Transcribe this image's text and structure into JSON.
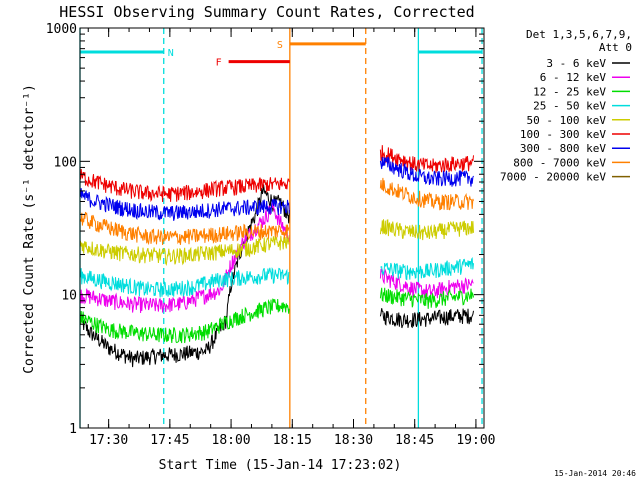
{
  "chart_data": {
    "type": "line",
    "title": "HESSI Observing Summary Count Rates, Corrected",
    "xlabel": "Start Time (15-Jan-14 17:23:02)",
    "ylabel": "Corrected Count Rate (s⁻¹ detector⁻¹)",
    "y_scale": "log",
    "ylim": [
      1,
      1000
    ],
    "xlim_minutes": [
      17.383,
      19.033
    ],
    "x_ticks": [
      {
        "value": 17.5,
        "label": "17:30"
      },
      {
        "value": 17.75,
        "label": "17:45"
      },
      {
        "value": 18.0,
        "label": "18:00"
      },
      {
        "value": 18.25,
        "label": "18:15"
      },
      {
        "value": 18.5,
        "label": "18:30"
      },
      {
        "value": 18.75,
        "label": "18:45"
      },
      {
        "value": 19.0,
        "label": "19:00"
      }
    ],
    "y_ticks": [
      {
        "value": 1,
        "label": "1"
      },
      {
        "value": 10,
        "label": "10"
      },
      {
        "value": 100,
        "label": "100"
      },
      {
        "value": 1000,
        "label": "1000"
      }
    ],
    "legend": {
      "position": "top-right",
      "header_line1": "Det 1,3,5,6,7,9,",
      "header_line2": "Att 0",
      "entries": [
        {
          "label": "3 - 6 keV",
          "color": "#000000"
        },
        {
          "label": "6 - 12 keV",
          "color": "#ee00ee"
        },
        {
          "label": "12 - 25 keV",
          "color": "#00dd00"
        },
        {
          "label": "25 - 50 keV",
          "color": "#00dddd"
        },
        {
          "label": "50 - 100 keV",
          "color": "#cccc00"
        },
        {
          "label": "100 - 300 keV",
          "color": "#ee0000"
        },
        {
          "label": "300 - 800 keV",
          "color": "#0000ee"
        },
        {
          "label": "800 - 7000 keV",
          "color": "#ff8000"
        },
        {
          "label": "7000 - 20000 keV",
          "color": "#806000"
        }
      ]
    },
    "series": [
      {
        "color": "#000000",
        "gaps": [
          [
            18.24,
            18.61
          ]
        ],
        "points": [
          [
            17.383,
            6.5
          ],
          [
            17.42,
            5.3
          ],
          [
            17.5,
            4
          ],
          [
            17.6,
            3.3
          ],
          [
            17.7,
            3.5
          ],
          [
            17.8,
            3.6
          ],
          [
            17.9,
            3.8
          ],
          [
            17.98,
            6.5
          ],
          [
            18.0,
            12
          ],
          [
            18.05,
            25
          ],
          [
            18.1,
            40
          ],
          [
            18.13,
            60
          ],
          [
            18.16,
            52
          ],
          [
            18.18,
            48
          ],
          [
            18.2,
            50
          ],
          [
            18.225,
            42
          ],
          [
            18.24,
            38
          ],
          [
            18.61,
            7
          ],
          [
            18.7,
            6.5
          ],
          [
            18.8,
            6.6
          ],
          [
            18.9,
            6.9
          ],
          [
            18.99,
            7
          ]
        ]
      },
      {
        "color": "#ee00ee",
        "gaps": [
          [
            18.24,
            18.61
          ]
        ],
        "points": [
          [
            17.383,
            10
          ],
          [
            17.45,
            9.5
          ],
          [
            17.5,
            9
          ],
          [
            17.6,
            8.5
          ],
          [
            17.7,
            8.3
          ],
          [
            17.8,
            8.6
          ],
          [
            17.9,
            10
          ],
          [
            17.96,
            11
          ],
          [
            18.0,
            17
          ],
          [
            18.05,
            25
          ],
          [
            18.1,
            32
          ],
          [
            18.14,
            38
          ],
          [
            18.17,
            46
          ],
          [
            18.2,
            35
          ],
          [
            18.225,
            30
          ],
          [
            18.24,
            28
          ],
          [
            18.61,
            14
          ],
          [
            18.65,
            13
          ],
          [
            18.75,
            11
          ],
          [
            18.82,
            10.5
          ],
          [
            18.9,
            11.5
          ],
          [
            18.99,
            12
          ]
        ]
      },
      {
        "color": "#00dd00",
        "gaps": [
          [
            18.24,
            18.61
          ]
        ],
        "points": [
          [
            17.383,
            6.8
          ],
          [
            17.45,
            6
          ],
          [
            17.5,
            5.5
          ],
          [
            17.6,
            5.2
          ],
          [
            17.7,
            5
          ],
          [
            17.8,
            5
          ],
          [
            17.9,
            5.3
          ],
          [
            18.0,
            6.5
          ],
          [
            18.05,
            7
          ],
          [
            18.1,
            7.5
          ],
          [
            18.15,
            8
          ],
          [
            18.2,
            8.3
          ],
          [
            18.225,
            8.3
          ],
          [
            18.24,
            8
          ],
          [
            18.61,
            10
          ],
          [
            18.7,
            9.5
          ],
          [
            18.8,
            9
          ],
          [
            18.9,
            9.5
          ],
          [
            18.99,
            10
          ]
        ]
      },
      {
        "color": "#00dddd",
        "gaps": [
          [
            18.24,
            18.61
          ]
        ],
        "points": [
          [
            17.383,
            14
          ],
          [
            17.45,
            13
          ],
          [
            17.55,
            12
          ],
          [
            17.65,
            11
          ],
          [
            17.75,
            11
          ],
          [
            17.85,
            11.5
          ],
          [
            17.95,
            13
          ],
          [
            18.05,
            13.5
          ],
          [
            18.15,
            14
          ],
          [
            18.225,
            14
          ],
          [
            18.24,
            13.5
          ],
          [
            18.61,
            16
          ],
          [
            18.7,
            15
          ],
          [
            18.8,
            15
          ],
          [
            18.9,
            16
          ],
          [
            18.99,
            17
          ]
        ]
      },
      {
        "color": "#cccc00",
        "gaps": [
          [
            18.24,
            18.61
          ]
        ],
        "points": [
          [
            17.383,
            24
          ],
          [
            17.45,
            22
          ],
          [
            17.55,
            20.5
          ],
          [
            17.65,
            20
          ],
          [
            17.75,
            19.5
          ],
          [
            17.85,
            20
          ],
          [
            17.95,
            21
          ],
          [
            18.05,
            22
          ],
          [
            18.15,
            24
          ],
          [
            18.225,
            25
          ],
          [
            18.24,
            24.5
          ],
          [
            18.61,
            33
          ],
          [
            18.7,
            30
          ],
          [
            18.8,
            29
          ],
          [
            18.9,
            31
          ],
          [
            18.99,
            32
          ]
        ]
      },
      {
        "color": "#ee0000",
        "gaps": [
          [
            18.24,
            18.61
          ]
        ],
        "points": [
          [
            17.383,
            78
          ],
          [
            17.45,
            70
          ],
          [
            17.55,
            62
          ],
          [
            17.65,
            58
          ],
          [
            17.75,
            57
          ],
          [
            17.85,
            59
          ],
          [
            17.95,
            63
          ],
          [
            18.05,
            65
          ],
          [
            18.15,
            67
          ],
          [
            18.225,
            68
          ],
          [
            18.24,
            68
          ],
          [
            18.61,
            118
          ],
          [
            18.7,
            104
          ],
          [
            18.75,
            95
          ],
          [
            18.82,
            92
          ],
          [
            18.9,
            96
          ],
          [
            18.99,
            98
          ]
        ]
      },
      {
        "color": "#0000ee",
        "gaps": [
          [
            18.24,
            18.61
          ]
        ],
        "points": [
          [
            17.383,
            56
          ],
          [
            17.45,
            50
          ],
          [
            17.55,
            45
          ],
          [
            17.65,
            42
          ],
          [
            17.75,
            41
          ],
          [
            17.85,
            42
          ],
          [
            17.95,
            44
          ],
          [
            18.05,
            45
          ],
          [
            18.15,
            46
          ],
          [
            18.225,
            46
          ],
          [
            18.24,
            46
          ],
          [
            18.61,
            100
          ],
          [
            18.7,
            86
          ],
          [
            18.75,
            78
          ],
          [
            18.82,
            74
          ],
          [
            18.9,
            75
          ],
          [
            18.99,
            75
          ]
        ]
      },
      {
        "color": "#ff8000",
        "gaps": [
          [
            18.24,
            18.61
          ]
        ],
        "points": [
          [
            17.383,
            38
          ],
          [
            17.45,
            34
          ],
          [
            17.55,
            30
          ],
          [
            17.65,
            27.5
          ],
          [
            17.75,
            27
          ],
          [
            17.85,
            27.5
          ],
          [
            17.95,
            28.5
          ],
          [
            18.05,
            29.5
          ],
          [
            18.15,
            30
          ],
          [
            18.225,
            30.5
          ],
          [
            18.24,
            30
          ],
          [
            18.61,
            68
          ],
          [
            18.7,
            58
          ],
          [
            18.75,
            54
          ],
          [
            18.82,
            50
          ],
          [
            18.9,
            50
          ],
          [
            18.99,
            50
          ]
        ]
      }
    ],
    "annotations": {
      "intervals": [
        {
          "label": "N",
          "color": "#00dddd",
          "start": 17.383,
          "end": 17.725,
          "level": 660
        },
        {
          "label": "F",
          "color": "#ee0000",
          "start": 17.99,
          "end": 18.24,
          "level": 560
        },
        {
          "label": "S",
          "color": "#ff8000",
          "start": 18.24,
          "end": 18.55,
          "level": 760
        },
        {
          "label": "",
          "color": "#00dddd",
          "start": 18.765,
          "end": 19.025,
          "level": 660
        }
      ],
      "vertical_lines": [
        {
          "x": 17.383,
          "color": "#00dddd",
          "style": "solid"
        },
        {
          "x": 17.725,
          "color": "#00dddd",
          "style": "dashed"
        },
        {
          "x": 18.24,
          "color": "#ff8000",
          "style": "solid"
        },
        {
          "x": 18.55,
          "color": "#ff8000",
          "style": "dashed"
        },
        {
          "x": 18.765,
          "color": "#00dddd",
          "style": "solid"
        },
        {
          "x": 19.025,
          "color": "#00dddd",
          "style": "dashed"
        }
      ]
    }
  },
  "footer": {
    "timestamp": "15-Jan-2014 20:46"
  }
}
